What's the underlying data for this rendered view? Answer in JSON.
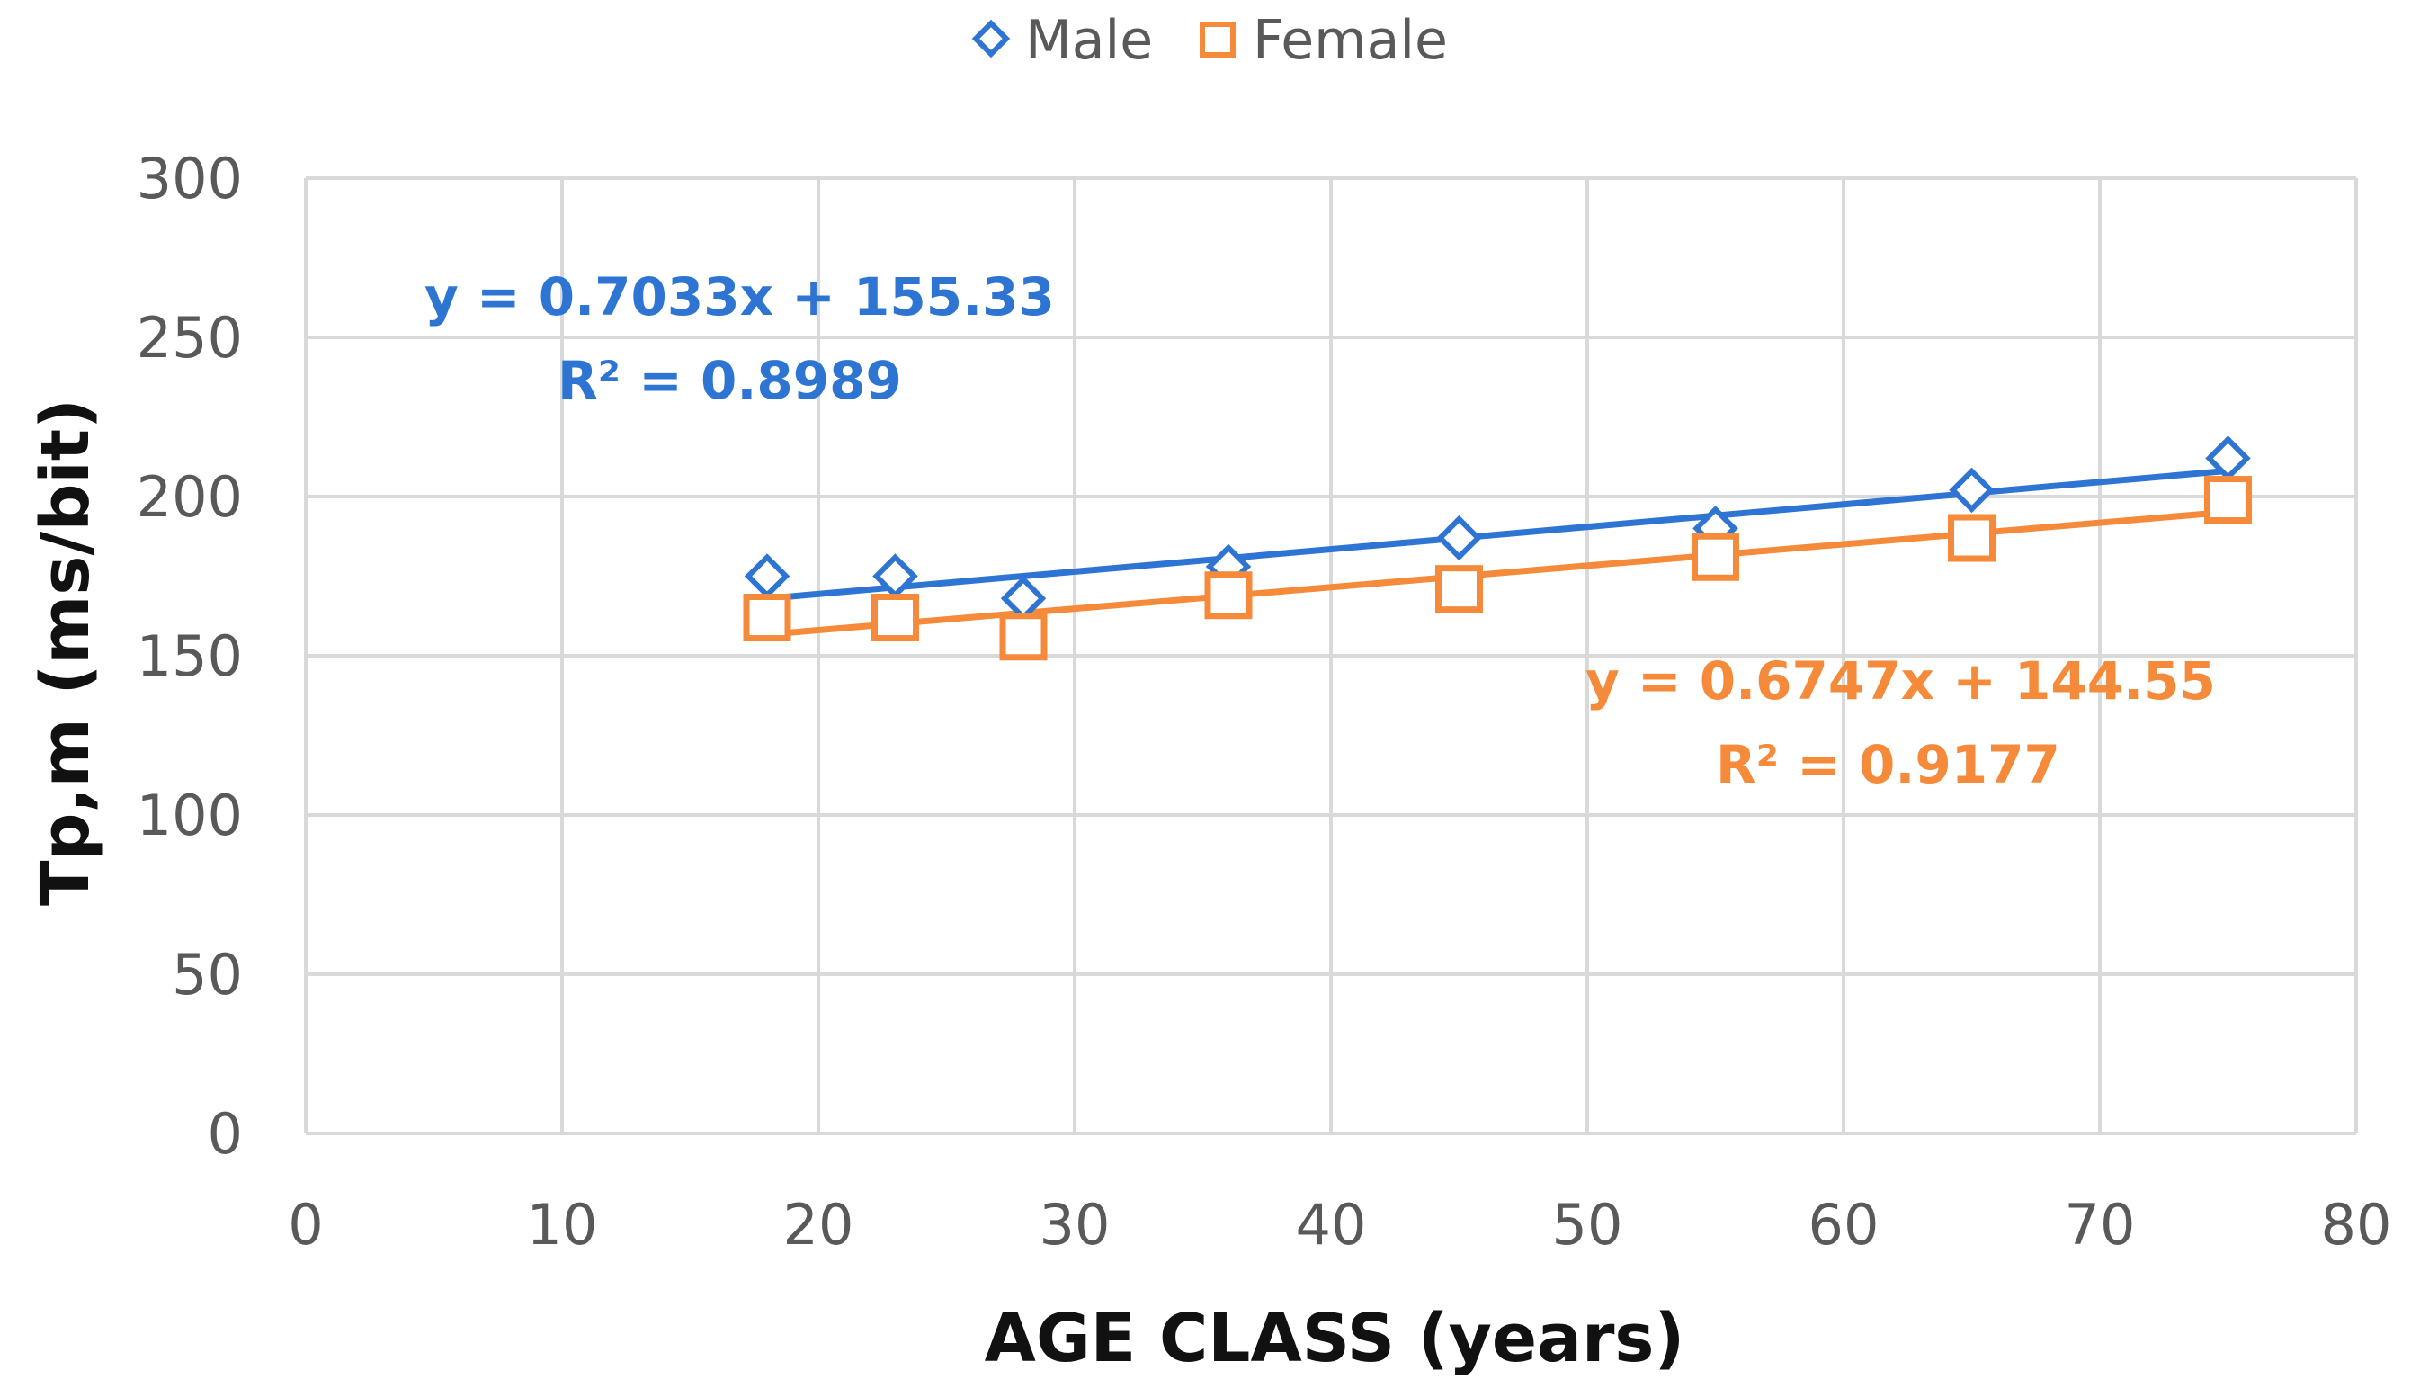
{
  "chart_data": {
    "type": "scatter",
    "title": "",
    "xlabel": "AGE CLASS (years)",
    "ylabel": "Tp,m (ms/bit)",
    "xlim": [
      0,
      80
    ],
    "ylim": [
      0,
      300
    ],
    "xticks": [
      0,
      10,
      20,
      30,
      40,
      50,
      60,
      70,
      80
    ],
    "yticks": [
      0,
      50,
      100,
      150,
      200,
      250,
      300
    ],
    "grid": true,
    "legend_position": "top-center",
    "series": [
      {
        "name": "Male",
        "marker": "diamond",
        "color": "#2E75D3",
        "x": [
          18,
          23,
          28,
          36,
          45,
          55,
          65,
          75
        ],
        "y": [
          175,
          175,
          168,
          178,
          187,
          190,
          202,
          212
        ],
        "trendline": {
          "slope": 0.7033,
          "intercept": 155.33,
          "equation": "y = 0.7033x + 155.33",
          "r2": "R² = 0.8989"
        }
      },
      {
        "name": "Female",
        "marker": "square",
        "color": "#F58A3A",
        "x": [
          18,
          23,
          28,
          36,
          45,
          55,
          65,
          75
        ],
        "y": [
          162,
          162,
          156,
          169,
          171,
          181,
          187,
          199
        ],
        "trendline": {
          "slope": 0.6747,
          "intercept": 144.55,
          "equation": "y = 0.6747x + 144.55",
          "r2": "R² = 0.9177"
        }
      }
    ]
  }
}
